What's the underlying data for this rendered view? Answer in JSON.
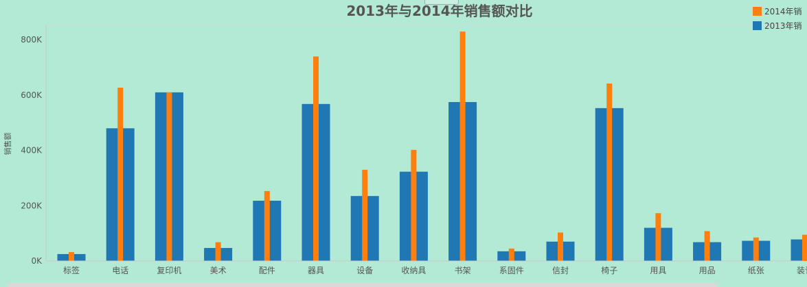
{
  "chart_data": {
    "type": "bar",
    "title": "2013年与2014年销售额对比",
    "ylabel": "销售额",
    "xlabel": "",
    "ylim": [
      0,
      850000
    ],
    "yticks": [
      {
        "value": 0,
        "label": "0K"
      },
      {
        "value": 200000,
        "label": "200K"
      },
      {
        "value": 400000,
        "label": "400K"
      },
      {
        "value": 600000,
        "label": "600K"
      },
      {
        "value": 800000,
        "label": "800K"
      }
    ],
    "categories": [
      "标签",
      "电话",
      "复印机",
      "美术",
      "配件",
      "器具",
      "设备",
      "收纳具",
      "书架",
      "系固件",
      "信封",
      "椅子",
      "用具",
      "用品",
      "纸张",
      "装订"
    ],
    "series": [
      {
        "name": "2013年销",
        "color": "#1f77b4",
        "values": [
          25000,
          480000,
          610000,
          47000,
          218000,
          568000,
          235000,
          323000,
          575000,
          35000,
          70000,
          553000,
          120000,
          68000,
          73000,
          78000
        ]
      },
      {
        "name": "2014年销",
        "color": "#ff7f0e",
        "values": [
          32000,
          627000,
          610000,
          68000,
          253000,
          740000,
          330000,
          402000,
          830000,
          45000,
          103000,
          642000,
          173000,
          108000,
          85000,
          95000
        ]
      }
    ],
    "legend_position": "top-right",
    "grid": false
  }
}
